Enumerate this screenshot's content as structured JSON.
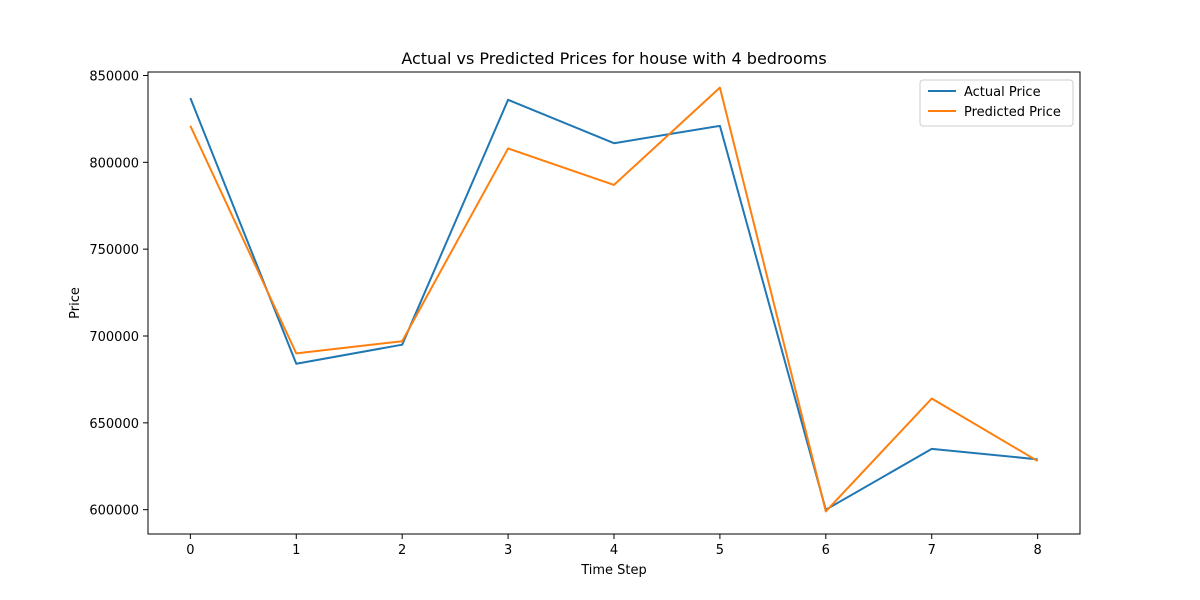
{
  "chart_data": {
    "type": "line",
    "title": "Actual vs Predicted Prices for house with 4 bedrooms",
    "xlabel": "Time Step",
    "ylabel": "Price",
    "x": [
      0,
      1,
      2,
      3,
      4,
      5,
      6,
      7,
      8
    ],
    "xlim": [
      -0.4,
      8.4
    ],
    "ylim": [
      586000,
      852000
    ],
    "xticks": [
      0,
      1,
      2,
      3,
      4,
      5,
      6,
      7,
      8
    ],
    "yticks": [
      600000,
      650000,
      700000,
      750000,
      800000,
      850000
    ],
    "grid": false,
    "legend_position": "top-right",
    "series": [
      {
        "name": "Actual Price",
        "color": "#1f77b4",
        "values": [
          837000,
          684000,
          695000,
          836000,
          811000,
          821000,
          600000,
          635000,
          629000
        ]
      },
      {
        "name": "Predicted Price",
        "color": "#ff7f0e",
        "values": [
          821000,
          690000,
          697000,
          808000,
          787000,
          843000,
          599000,
          664000,
          628000
        ]
      }
    ]
  }
}
